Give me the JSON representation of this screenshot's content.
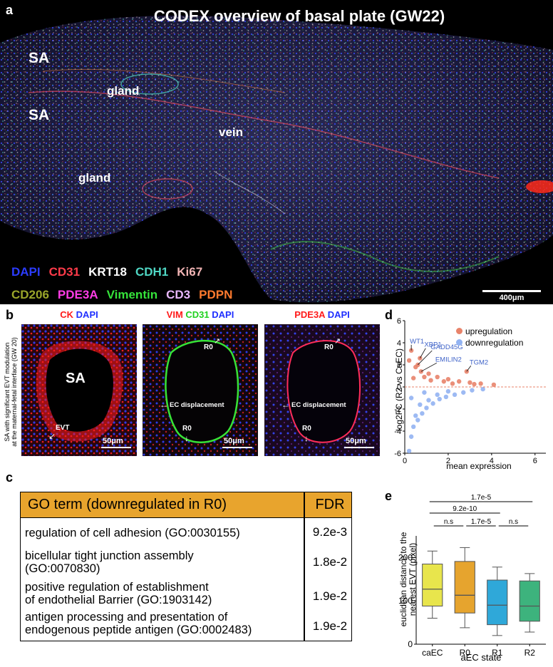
{
  "panel_a": {
    "letter": "a",
    "title": "CODEX overview of basal plate (GW22)",
    "region_labels": [
      "SA",
      "SA",
      "gland",
      "vein",
      "gland"
    ],
    "markers_row1": [
      {
        "text": "DAPI",
        "color": "#2b3cff"
      },
      {
        "text": "CD31",
        "color": "#ff3b4a"
      },
      {
        "text": "KRT18",
        "color": "#ffffff"
      },
      {
        "text": "CDH1",
        "color": "#4fd7c4"
      },
      {
        "text": "Ki67",
        "color": "#f2b5b5"
      }
    ],
    "markers_row2": [
      {
        "text": "CD206",
        "color": "#9aa62a"
      },
      {
        "text": "PDE3A",
        "color": "#ff3ce6"
      },
      {
        "text": "Vimentin",
        "color": "#35e33a"
      },
      {
        "text": "CD3",
        "color": "#e9b8ff"
      },
      {
        "text": "PDPN",
        "color": "#ff7a2e"
      }
    ],
    "scalebar": "400μm"
  },
  "panel_b": {
    "letter": "b",
    "side_caption_1": "SA with significant EVT modulation",
    "side_caption_2": "at the maternal-fetal interface (GW 20)",
    "images": [
      {
        "stains": [
          {
            "text": "CK",
            "color": "#ff1a1a"
          },
          {
            "text": "DAPI",
            "color": "#1f2fff"
          }
        ],
        "labels": [
          "SA",
          "EVT"
        ],
        "scale": "50μm"
      },
      {
        "stains": [
          {
            "text": "VIM",
            "color": "#ff1a1a"
          },
          {
            "text": "CD31",
            "color": "#1fd11f"
          },
          {
            "text": "DAPI",
            "color": "#1f2fff"
          }
        ],
        "labels": [
          "R0",
          "EC displacement",
          "R0"
        ],
        "scale": "50μm"
      },
      {
        "stains": [
          {
            "text": "PDE3A",
            "color": "#ff1a1a"
          },
          {
            "text": "DAPI",
            "color": "#1f2fff"
          }
        ],
        "labels": [
          "R0",
          "EC displacement",
          "R0"
        ],
        "scale": "50μm"
      }
    ]
  },
  "panel_c": {
    "letter": "c",
    "header_term": "GO term (downregulated in R0)",
    "header_fdr": "FDR",
    "header_color": "#e8a42d",
    "rows": [
      {
        "term_1": "regulation of cell adhesion (GO:0030155)",
        "term_2": "",
        "fdr": "9.2e-3"
      },
      {
        "term_1": "bicellular tight junction assembly",
        "term_2": "(GO:0070830)",
        "fdr": "1.8e-2"
      },
      {
        "term_1": "positive regulation of establishment",
        "term_2": "of endothelial Barrier (GO:1903142)",
        "fdr": "1.9e-2"
      },
      {
        "term_1": "antigen processing and presentation of",
        "term_2": "endogenous peptide antigen (GO:0002483)",
        "fdr": "1.9e-2"
      }
    ]
  },
  "chart_data": [
    {
      "panel": "d",
      "type": "scatter",
      "xlabel": "mean expression",
      "ylabel": "log2FC (R2 vs CaEC)",
      "xlim": [
        0,
        6.5
      ],
      "ylim": [
        -6,
        6
      ],
      "xticks": [
        0,
        2,
        4,
        6
      ],
      "yticks": [
        -6,
        -4,
        -2,
        0,
        2,
        4,
        6
      ],
      "reference_line_y": 0,
      "legend_position": "top-right",
      "series": [
        {
          "name": "upregulation",
          "color": "#e8836a",
          "points": [
            [
              0.3,
              3.3
            ],
            [
              0.7,
              2.6
            ],
            [
              0.6,
              2.0
            ],
            [
              0.75,
              1.4
            ],
            [
              2.85,
              1.4
            ],
            [
              0.5,
              1.8
            ],
            [
              1.1,
              1.2
            ],
            [
              1.5,
              0.9
            ],
            [
              2.0,
              0.7
            ],
            [
              2.5,
              0.5
            ],
            [
              3.0,
              0.4
            ],
            [
              3.5,
              0.3
            ],
            [
              4.1,
              0.2
            ],
            [
              1.8,
              0.5
            ],
            [
              1.2,
              0.6
            ],
            [
              0.4,
              0.8
            ],
            [
              0.9,
              0.9
            ],
            [
              2.2,
              0.3
            ],
            [
              3.2,
              0.25
            ],
            [
              0.2,
              2.4
            ]
          ]
        },
        {
          "name": "downregulation",
          "color": "#92b3f2",
          "points": [
            [
              0.2,
              -5.8
            ],
            [
              0.3,
              -4.5
            ],
            [
              0.4,
              -3.6
            ],
            [
              0.6,
              -3.0
            ],
            [
              0.8,
              -2.4
            ],
            [
              1.0,
              -1.9
            ],
            [
              1.3,
              -1.5
            ],
            [
              1.6,
              -1.1
            ],
            [
              1.9,
              -0.9
            ],
            [
              2.3,
              -0.7
            ],
            [
              2.7,
              -0.5
            ],
            [
              3.1,
              -0.3
            ],
            [
              3.6,
              -0.2
            ],
            [
              0.5,
              -2.6
            ],
            [
              0.7,
              -1.6
            ],
            [
              1.1,
              -1.2
            ],
            [
              1.5,
              -0.7
            ],
            [
              2.0,
              -0.4
            ],
            [
              0.3,
              -1.0
            ],
            [
              0.9,
              -0.5
            ]
          ]
        }
      ],
      "annotated_genes": [
        {
          "gene": "WT1",
          "x": 0.3,
          "y": 3.3
        },
        {
          "gene": "XBP1",
          "x": 0.7,
          "y": 2.6
        },
        {
          "gene": "GADD45G",
          "x": 0.6,
          "y": 2.0
        },
        {
          "gene": "EMILIN2",
          "x": 0.75,
          "y": 1.4
        },
        {
          "gene": "TGM2",
          "x": 2.85,
          "y": 1.4
        }
      ],
      "annotation_color": "#3f63c8"
    },
    {
      "panel": "e",
      "type": "box",
      "xlabel": "aEC state",
      "ylabel_1": "euclidean distance to the",
      "ylabel_2": "nearest EVT (pixel)",
      "ylim": [
        0,
        250
      ],
      "yticks": [
        0,
        100,
        200
      ],
      "categories": [
        "caEC",
        "R0",
        "R1",
        "R2"
      ],
      "boxes": [
        {
          "category": "caEC",
          "whisker_low": 60,
          "q1": 88,
          "median": 127,
          "q3": 185,
          "whisker_high": 215,
          "color": "#e8e54c"
        },
        {
          "category": "R0",
          "whisker_low": 38,
          "q1": 72,
          "median": 113,
          "q3": 191,
          "whisker_high": 223,
          "color": "#e6a42e"
        },
        {
          "category": "R1",
          "whisker_low": 20,
          "q1": 45,
          "median": 90,
          "q3": 148,
          "whisker_high": 178,
          "color": "#2fa8d9"
        },
        {
          "category": "R2",
          "whisker_low": 28,
          "q1": 53,
          "median": 88,
          "q3": 146,
          "whisker_high": 163,
          "color": "#3db37d"
        }
      ],
      "comparisons": [
        {
          "from": "caEC",
          "to": "R2",
          "label": "1.7e-5"
        },
        {
          "from": "caEC",
          "to": "R1",
          "label": "9.2e-10"
        },
        {
          "from": "caEC",
          "to": "R0",
          "label": "n.s"
        },
        {
          "from": "R0",
          "to": "R1",
          "label": "1.7e-5"
        },
        {
          "from": "R1",
          "to": "R2",
          "label": "n.s"
        }
      ]
    }
  ]
}
